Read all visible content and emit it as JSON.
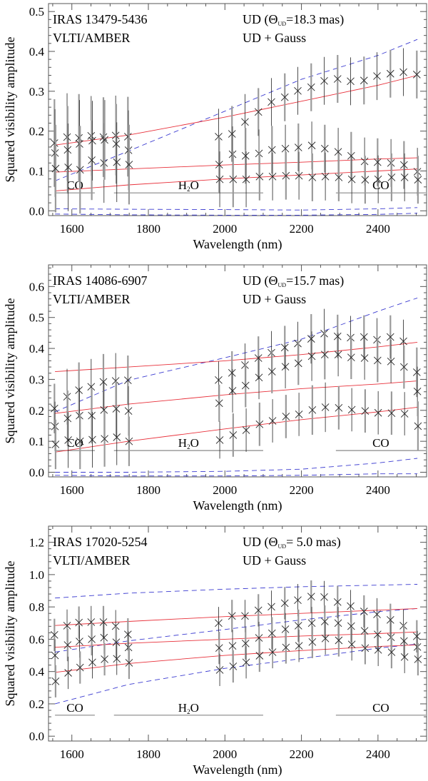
{
  "chart_data": [
    {
      "type": "scatter",
      "target": "IRAS 13479-5436",
      "instrument": "VLTI/AMBER",
      "legend": {
        "ud_prefix": "UD (Θ",
        "ud_sub": "UD",
        "ud_suffix": "=18.3 mas)",
        "ud_gauss": "UD + Gauss"
      },
      "xlabel": "Wavelength (nm)",
      "ylabel": "Squared visibility amplitude",
      "xlim": [
        1539,
        2527
      ],
      "ylim": [
        -0.012,
        0.52
      ],
      "xticks": [
        "1600",
        "1800",
        "2000",
        "2200",
        "2400"
      ],
      "yticks": [
        "0.0",
        "0.1",
        "0.2",
        "0.3",
        "0.4",
        "0.5"
      ],
      "wavelengths": [
        1556,
        1589,
        1620,
        1652,
        1684,
        1716,
        1748,
        1985,
        2020,
        2054,
        2089,
        2123,
        2158,
        2192,
        2227,
        2261,
        2296,
        2330,
        2365,
        2399,
        2434,
        2468,
        2503
      ],
      "series": [
        {
          "values": [
            0.17,
            0.185,
            0.183,
            0.188,
            0.185,
            0.189,
            0.186,
            0.186,
            0.193,
            0.223,
            0.248,
            0.273,
            0.285,
            0.301,
            0.31,
            0.326,
            0.331,
            0.325,
            0.327,
            0.338,
            0.344,
            0.348,
            0.342
          ]
        },
        {
          "values": [
            0.145,
            0.153,
            0.168,
            0.127,
            0.12,
            0.168,
            0.152,
            0.116,
            0.142,
            0.138,
            0.144,
            0.153,
            0.156,
            0.159,
            0.164,
            0.156,
            0.148,
            0.138,
            0.124,
            0.122,
            0.12,
            0.115,
            0.098
          ]
        },
        {
          "values": [
            0.106,
            0.109,
            0.103,
            0.176,
            0.178,
            0.122,
            0.116,
            0.079,
            0.079,
            0.079,
            0.086,
            0.086,
            0.088,
            0.088,
            0.084,
            0.086,
            0.084,
            0.079,
            0.078,
            0.079,
            0.084,
            0.084,
            0.078
          ]
        }
      ],
      "err": [
        0.11,
        0.11,
        0.11,
        0.1,
        0.1,
        0.1,
        0.1,
        0.07,
        0.07,
        0.07,
        0.06,
        0.06,
        0.06,
        0.06,
        0.06,
        0.06,
        0.06,
        0.06,
        0.06,
        0.06,
        0.06,
        0.06,
        0.06
      ],
      "models": {
        "x": [
          1556,
          1748,
          2000,
          2200,
          2400,
          2503
        ],
        "ud_gauss": [
          [
            0.165,
            0.19,
            0.235,
            0.275,
            0.315,
            0.34
          ],
          [
            0.097,
            0.105,
            0.115,
            0.122,
            0.13,
            0.133
          ],
          [
            0.05,
            0.065,
            0.08,
            0.09,
            0.1,
            0.105
          ]
        ],
        "ud": [
          [
            0.075,
            0.15,
            0.25,
            0.33,
            0.39,
            0.43
          ],
          [
            0.005,
            0.004,
            0.003,
            0.002,
            0.005,
            0.008
          ],
          [
            -0.008,
            -0.01,
            -0.011,
            -0.011,
            -0.009,
            -0.006
          ]
        ]
      },
      "bands": [
        {
          "label": "CO",
          "sub": "",
          "tail": "",
          "range": [
            1556,
            1660
          ],
          "level": 0.045
        },
        {
          "label": "H",
          "sub": "2",
          "tail": "O",
          "range": [
            1710,
            2100
          ],
          "level": 0.045
        },
        {
          "label": "CO",
          "sub": "",
          "tail": "",
          "range": [
            2290,
            2525
          ],
          "level": 0.045
        }
      ]
    },
    {
      "type": "scatter",
      "target": "IRAS 14086-6907",
      "instrument": "VLTI/AMBER",
      "legend": {
        "ud_prefix": "UD (Θ",
        "ud_sub": "UD",
        "ud_suffix": "=15.7 mas)",
        "ud_gauss": "UD + Gauss"
      },
      "xlabel": "Wavelength (nm)",
      "ylabel": "Squared visibility amplitude",
      "xlim": [
        1539,
        2527
      ],
      "ylim": [
        -0.015,
        0.67
      ],
      "xticks": [
        "1600",
        "1800",
        "2000",
        "2200",
        "2400"
      ],
      "yticks": [
        "0.0",
        "0.1",
        "0.2",
        "0.3",
        "0.4",
        "0.5",
        "0.6"
      ],
      "wavelengths": [
        1556,
        1589,
        1620,
        1652,
        1684,
        1716,
        1748,
        1985,
        2020,
        2054,
        2089,
        2123,
        2158,
        2192,
        2227,
        2261,
        2296,
        2330,
        2365,
        2399,
        2434,
        2468,
        2503
      ],
      "series": [
        {
          "values": [
            0.206,
            0.244,
            0.265,
            0.276,
            0.292,
            0.295,
            0.297,
            0.298,
            0.321,
            0.346,
            0.369,
            0.386,
            0.403,
            0.416,
            0.431,
            0.448,
            0.439,
            0.435,
            0.437,
            0.428,
            0.437,
            0.423,
            0.323
          ]
        },
        {
          "values": [
            0.148,
            0.174,
            0.183,
            0.183,
            0.201,
            0.205,
            0.198,
            0.223,
            0.263,
            0.28,
            0.306,
            0.325,
            0.341,
            0.352,
            0.375,
            0.38,
            0.38,
            0.371,
            0.369,
            0.361,
            0.358,
            0.34,
            0.261
          ]
        },
        {
          "values": [
            0.09,
            0.104,
            0.1,
            0.105,
            0.108,
            0.113,
            0.1,
            0.104,
            0.12,
            0.136,
            0.155,
            0.166,
            0.18,
            0.187,
            0.201,
            0.21,
            0.208,
            0.202,
            0.198,
            0.192,
            0.191,
            0.189,
            0.149
          ]
        }
      ],
      "err": [
        0.08,
        0.09,
        0.09,
        0.09,
        0.09,
        0.09,
        0.08,
        0.06,
        0.07,
        0.07,
        0.07,
        0.07,
        0.07,
        0.07,
        0.08,
        0.08,
        0.07,
        0.07,
        0.07,
        0.07,
        0.07,
        0.07,
        0.08
      ],
      "models": {
        "x": [
          1556,
          1748,
          2000,
          2200,
          2400,
          2503
        ],
        "ud_gauss": [
          [
            0.325,
            0.34,
            0.36,
            0.38,
            0.405,
            0.42
          ],
          [
            0.19,
            0.22,
            0.25,
            0.27,
            0.285,
            0.295
          ],
          [
            0.065,
            0.1,
            0.14,
            0.17,
            0.195,
            0.21
          ]
        ],
        "ud": [
          [
            0.195,
            0.297,
            0.37,
            0.43,
            0.52,
            0.563
          ],
          [
            0.0,
            0.0,
            0.003,
            0.01,
            0.03,
            0.045
          ],
          [
            -0.01,
            -0.012,
            -0.012,
            -0.01,
            -0.005,
            -0.005
          ]
        ]
      },
      "bands": [
        {
          "label": "CO",
          "sub": "",
          "tail": "",
          "range": [
            1556,
            1660
          ],
          "level": 0.07
        },
        {
          "label": "H",
          "sub": "2",
          "tail": "O",
          "range": [
            1710,
            2100
          ],
          "level": 0.07
        },
        {
          "label": "CO",
          "sub": "",
          "tail": "",
          "range": [
            2290,
            2525
          ],
          "level": 0.07
        }
      ]
    },
    {
      "type": "scatter",
      "target": "IRAS 17020-5254",
      "instrument": "VLTI/AMBER",
      "legend": {
        "ud_prefix": "UD (Θ",
        "ud_sub": "UD",
        "ud_suffix": "= 5.0 mas)",
        "ud_gauss": "UD + Gauss"
      },
      "xlabel": "Wavelength (nm)",
      "ylabel": "Squared visibility amplitude",
      "xlim": [
        1539,
        2527
      ],
      "ylim": [
        -0.03,
        1.3
      ],
      "xticks": [
        "1600",
        "1800",
        "2000",
        "2200",
        "2400"
      ],
      "yticks": [
        "0.0",
        "0.2",
        "0.4",
        "0.6",
        "0.8",
        "1.0",
        "1.2"
      ],
      "wavelengths": [
        1556,
        1589,
        1620,
        1652,
        1684,
        1716,
        1748,
        1985,
        2020,
        2054,
        2089,
        2123,
        2158,
        2192,
        2227,
        2261,
        2296,
        2330,
        2365,
        2399,
        2434,
        2468,
        2503
      ],
      "series": [
        {
          "values": [
            0.627,
            0.684,
            0.703,
            0.706,
            0.706,
            0.681,
            0.63,
            0.7,
            0.744,
            0.744,
            0.779,
            0.801,
            0.823,
            0.842,
            0.864,
            0.861,
            0.83,
            0.805,
            0.772,
            0.754,
            0.72,
            0.684,
            0.618
          ]
        },
        {
          "values": [
            0.5,
            0.564,
            0.586,
            0.6,
            0.61,
            0.581,
            0.549,
            0.546,
            0.559,
            0.574,
            0.608,
            0.637,
            0.662,
            0.684,
            0.7,
            0.71,
            0.7,
            0.681,
            0.652,
            0.63,
            0.612,
            0.589,
            0.552
          ]
        },
        {
          "values": [
            0.34,
            0.392,
            0.425,
            0.457,
            0.476,
            0.479,
            0.454,
            0.41,
            0.432,
            0.457,
            0.498,
            0.52,
            0.549,
            0.559,
            0.583,
            0.605,
            0.593,
            0.568,
            0.545,
            0.534,
            0.52,
            0.49,
            0.476
          ]
        }
      ],
      "err": [
        0.1,
        0.1,
        0.1,
        0.1,
        0.1,
        0.1,
        0.1,
        0.1,
        0.1,
        0.1,
        0.1,
        0.1,
        0.1,
        0.1,
        0.1,
        0.1,
        0.1,
        0.1,
        0.1,
        0.1,
        0.1,
        0.1,
        0.1
      ],
      "models": {
        "x": [
          1556,
          1748,
          2000,
          2200,
          2400,
          2503
        ],
        "ud_gauss": [
          [
            0.685,
            0.71,
            0.74,
            0.76,
            0.78,
            0.79
          ],
          [
            0.55,
            0.575,
            0.6,
            0.62,
            0.635,
            0.645
          ],
          [
            0.395,
            0.45,
            0.5,
            0.53,
            0.555,
            0.565
          ]
        ],
        "ud": [
          [
            0.855,
            0.885,
            0.91,
            0.925,
            0.935,
            0.94
          ],
          [
            0.52,
            0.59,
            0.66,
            0.72,
            0.77,
            0.79
          ],
          [
            0.2,
            0.32,
            0.42,
            0.48,
            0.545,
            0.57
          ]
        ]
      },
      "bands": [
        {
          "label": "CO",
          "sub": "",
          "tail": "",
          "range": [
            1556,
            1660
          ],
          "level": 0.13
        },
        {
          "label": "H",
          "sub": "2",
          "tail": "O",
          "range": [
            1710,
            2100
          ],
          "level": 0.13
        },
        {
          "label": "CO",
          "sub": "",
          "tail": "",
          "range": [
            2290,
            2525
          ],
          "level": 0.13
        }
      ]
    }
  ],
  "colors": {
    "ud": "#3a3ad0",
    "ud_gauss": "#e8303a",
    "data": "#222222",
    "err_gray": "#9a9a9a",
    "band_gray": "#888888"
  }
}
